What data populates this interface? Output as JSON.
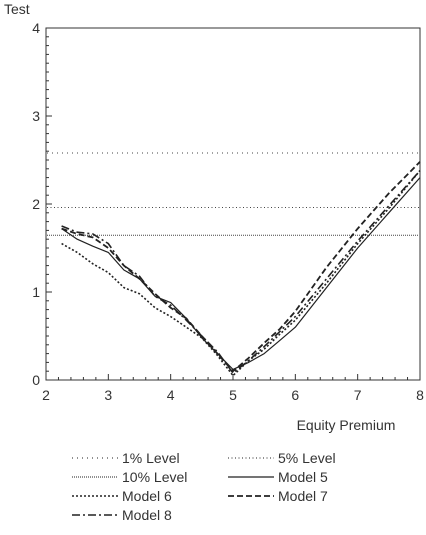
{
  "chart_data": {
    "type": "line",
    "xlabel": "Equity Premium",
    "ylabel": "Test",
    "xlim": [
      2,
      8
    ],
    "ylim": [
      0,
      4
    ],
    "x_ticks": [
      "2",
      "3",
      "4",
      "5",
      "6",
      "7",
      "8"
    ],
    "y_ticks": [
      "0",
      "1",
      "2",
      "3",
      "4"
    ],
    "grid": false,
    "legend_position": "bottom",
    "reference_lines": [
      {
        "name": "1% Level",
        "y": 2.58,
        "style": "dotted-sparse"
      },
      {
        "name": "5% Level",
        "y": 1.96,
        "style": "dotted-medium"
      },
      {
        "name": "10% Level",
        "y": 1.645,
        "style": "dotted-fine"
      }
    ],
    "series": [
      {
        "name": "Model 5",
        "style": "solid",
        "x": [
          2.25,
          2.5,
          2.75,
          3.0,
          3.25,
          3.5,
          3.75,
          4.0,
          4.25,
          4.5,
          4.75,
          5.0,
          5.25,
          5.5,
          5.75,
          6.0,
          6.5,
          7.0,
          7.5,
          8.0
        ],
        "y": [
          1.72,
          1.6,
          1.52,
          1.45,
          1.25,
          1.15,
          0.95,
          0.88,
          0.7,
          0.48,
          0.3,
          0.12,
          0.2,
          0.3,
          0.45,
          0.6,
          1.05,
          1.5,
          1.9,
          2.3
        ]
      },
      {
        "name": "Model 6",
        "style": "dotted",
        "x": [
          2.25,
          2.5,
          2.75,
          3.0,
          3.25,
          3.5,
          3.75,
          4.0,
          4.25,
          4.5,
          4.75,
          5.0,
          5.25,
          5.5,
          5.75,
          6.0,
          6.5,
          7.0,
          7.5,
          8.0
        ],
        "y": [
          1.55,
          1.45,
          1.32,
          1.22,
          1.05,
          0.98,
          0.82,
          0.72,
          0.6,
          0.48,
          0.28,
          0.05,
          0.22,
          0.35,
          0.52,
          0.68,
          1.1,
          1.55,
          1.95,
          2.38
        ]
      },
      {
        "name": "Model 7",
        "style": "dashed",
        "x": [
          2.25,
          2.5,
          2.75,
          3.0,
          3.25,
          3.5,
          3.75,
          4.0,
          4.25,
          4.5,
          4.75,
          5.0,
          5.25,
          5.5,
          5.75,
          6.0,
          6.5,
          7.0,
          7.5,
          8.0
        ],
        "y": [
          1.72,
          1.66,
          1.62,
          1.5,
          1.3,
          1.15,
          0.98,
          0.82,
          0.7,
          0.5,
          0.3,
          0.1,
          0.25,
          0.42,
          0.58,
          0.78,
          1.28,
          1.72,
          2.12,
          2.48
        ]
      },
      {
        "name": "Model 8",
        "style": "dashdot",
        "x": [
          2.25,
          2.5,
          2.75,
          3.0,
          3.25,
          3.5,
          3.75,
          4.0,
          4.25,
          4.5,
          4.75,
          5.0,
          5.25,
          5.5,
          5.75,
          6.0,
          6.5,
          7.0,
          7.5,
          8.0
        ],
        "y": [
          1.75,
          1.68,
          1.66,
          1.55,
          1.3,
          1.18,
          0.95,
          0.85,
          0.68,
          0.5,
          0.32,
          0.08,
          0.22,
          0.38,
          0.55,
          0.72,
          1.15,
          1.58,
          1.98,
          2.38
        ]
      }
    ],
    "legend": [
      "1% Level",
      "5% Level",
      "10% Level",
      "Model 5",
      "Model 6",
      "Model 7",
      "Model 8"
    ]
  }
}
